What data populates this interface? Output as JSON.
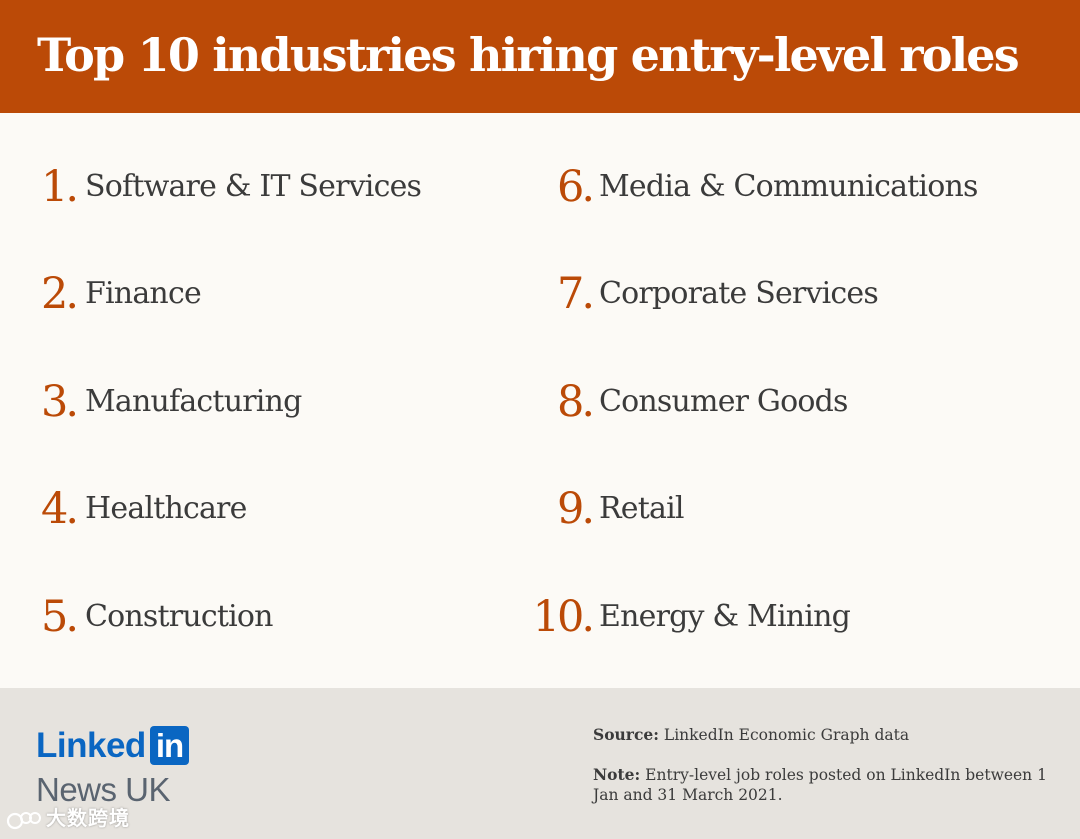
{
  "title": "Top 10 industries hiring entry-level roles",
  "ranking": [
    {
      "number": "1.",
      "label": "Software & IT Services"
    },
    {
      "number": "2.",
      "label": "Finance"
    },
    {
      "number": "3.",
      "label": "Manufacturing"
    },
    {
      "number": "4.",
      "label": "Healthcare"
    },
    {
      "number": "5.",
      "label": "Construction"
    },
    {
      "number": "6.",
      "label": "Media & Communications"
    },
    {
      "number": "7.",
      "label": "Corporate Services"
    },
    {
      "number": "8.",
      "label": "Consumer Goods"
    },
    {
      "number": "9.",
      "label": "Retail"
    },
    {
      "number": "10.",
      "label": "Energy & Mining"
    }
  ],
  "brand": {
    "linked": "Linked",
    "in": "in",
    "news": "News UK"
  },
  "notes": {
    "source_key": "Source:",
    "source_text": " LinkedIn Economic Graph data",
    "note_key": "Note:",
    "note_text": " Entry-level job roles posted on LinkedIn between 1 Jan and 31 March 2021."
  },
  "watermark": {
    "text": "大数跨境"
  },
  "colors": {
    "accent": "#bb4a07",
    "header_bg": "#bb4a07",
    "page_bg": "#fcfaf6",
    "footer_bg": "#e6e3de",
    "text": "#3b3b3b",
    "linkedin_blue": "#0a66c2"
  }
}
